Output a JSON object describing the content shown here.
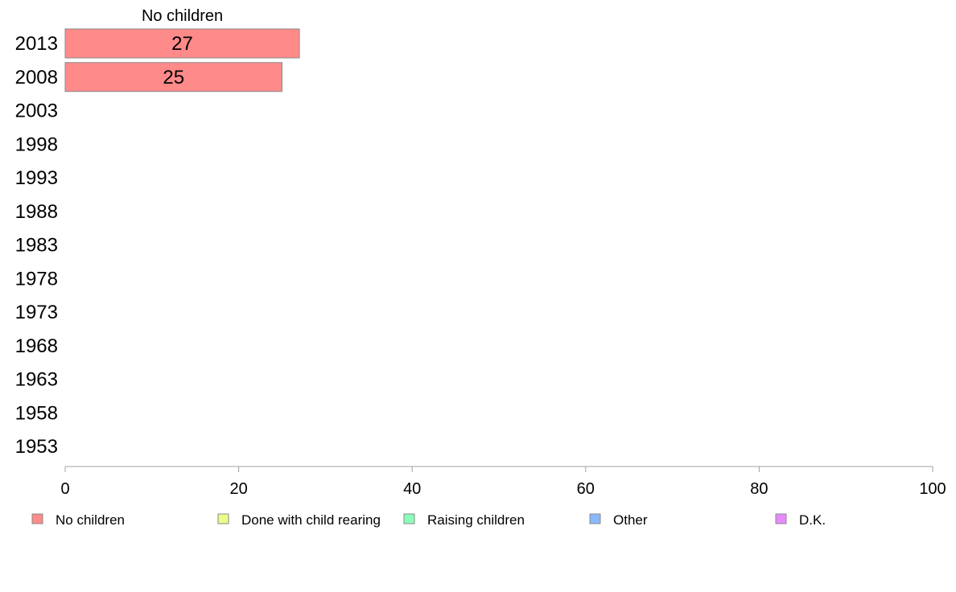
{
  "chart_data": {
    "type": "bar",
    "orientation": "horizontal",
    "stacked": true,
    "title": "",
    "xlabel": "",
    "ylabel": "",
    "xlim": [
      0,
      100
    ],
    "x_ticks": [
      0,
      20,
      40,
      60,
      80,
      100
    ],
    "categories": [
      "2013",
      "2008",
      "2003",
      "1998",
      "1993",
      "1988",
      "1983",
      "1978",
      "1973",
      "1968",
      "1963",
      "1958",
      "1953"
    ],
    "series": [
      {
        "name": "No children",
        "color": "#ff8a8a",
        "values": [
          27,
          25,
          null,
          null,
          null,
          null,
          null,
          null,
          null,
          null,
          null,
          null,
          null
        ]
      },
      {
        "name": "Done with child rearing",
        "color": "#e8ff8a",
        "values": [
          null,
          null,
          null,
          null,
          null,
          null,
          null,
          null,
          null,
          null,
          null,
          null,
          null
        ]
      },
      {
        "name": "Raising children",
        "color": "#8affb8",
        "values": [
          null,
          null,
          null,
          null,
          null,
          null,
          null,
          null,
          null,
          null,
          null,
          null,
          null
        ]
      },
      {
        "name": "Other",
        "color": "#8ab8ff",
        "values": [
          null,
          null,
          null,
          null,
          null,
          null,
          null,
          null,
          null,
          null,
          null,
          null,
          null
        ]
      },
      {
        "name": "D.K.",
        "color": "#e88aff",
        "values": [
          null,
          null,
          null,
          null,
          null,
          null,
          null,
          null,
          null,
          null,
          null,
          null,
          null
        ]
      }
    ],
    "series_header": "No children",
    "grid": false,
    "legend_position": "bottom"
  }
}
